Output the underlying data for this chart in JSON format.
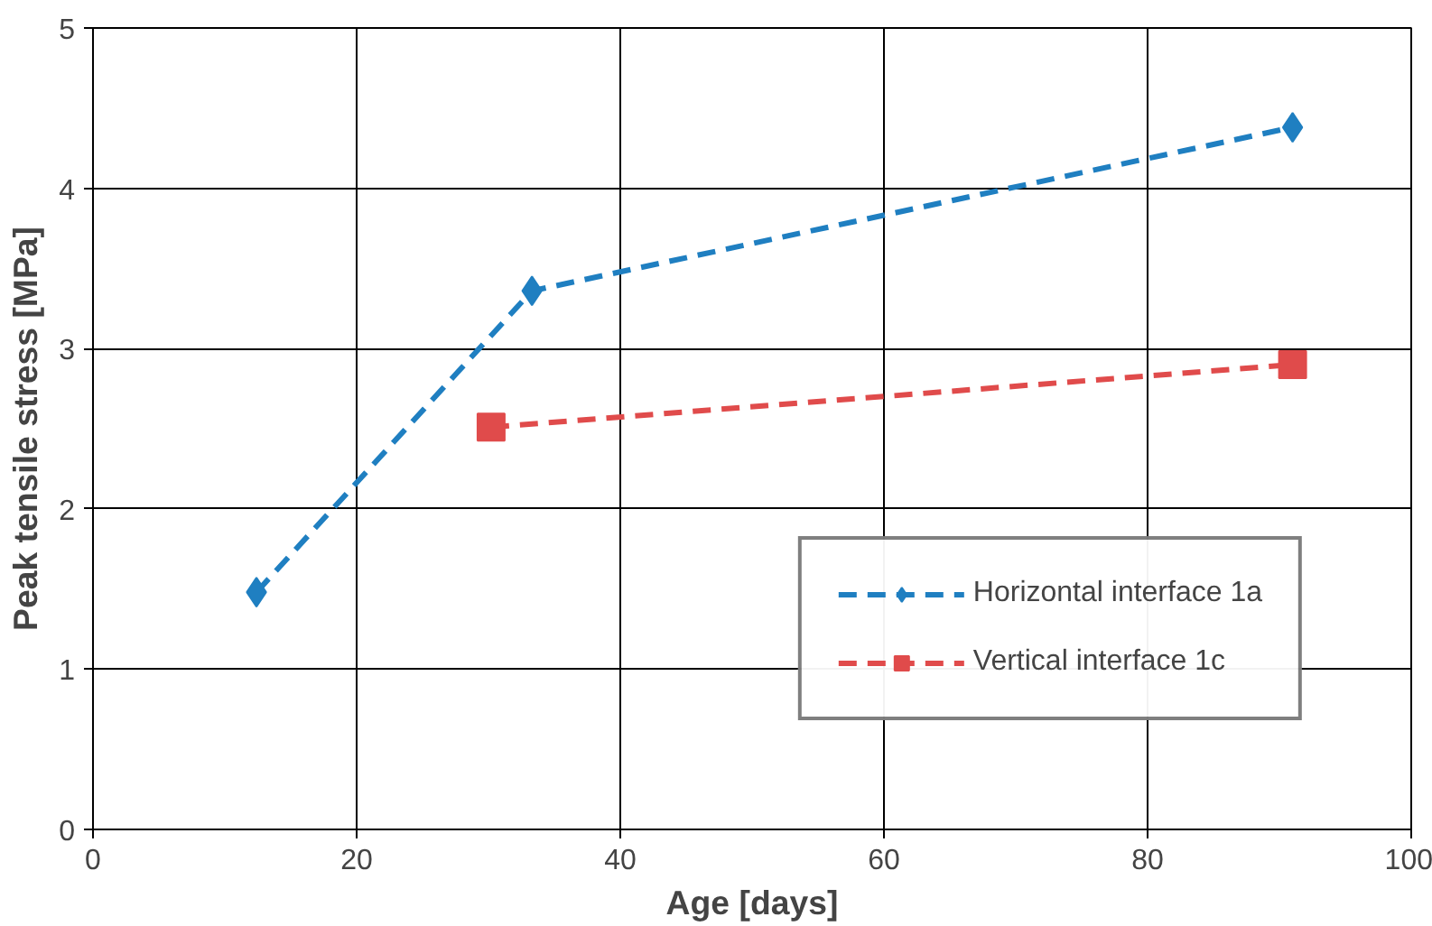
{
  "chart_data": {
    "type": "line",
    "xlabel": "Age [days]",
    "ylabel": "Peak tensile stress [MPa]",
    "xlim": [
      0,
      100
    ],
    "xticks": [
      0,
      20,
      40,
      60,
      80,
      100
    ],
    "ylim": [
      0,
      5
    ],
    "yticks": [
      0,
      1,
      2,
      3,
      4,
      5
    ],
    "grid": true,
    "legend": "bottom right",
    "line_style": "dashed",
    "series": [
      {
        "name": "Horizontal interface 1a",
        "color": "#1f7fc1",
        "marker": "diamond",
        "x": [
          12.4,
          33.3,
          91.0
        ],
        "values": [
          1.48,
          3.36,
          4.38
        ]
      },
      {
        "name": "Vertical interface 1c",
        "color": "#e04b4b",
        "marker": "square",
        "x": [
          30.2,
          91.0
        ],
        "values": [
          2.51,
          2.9
        ]
      }
    ]
  }
}
